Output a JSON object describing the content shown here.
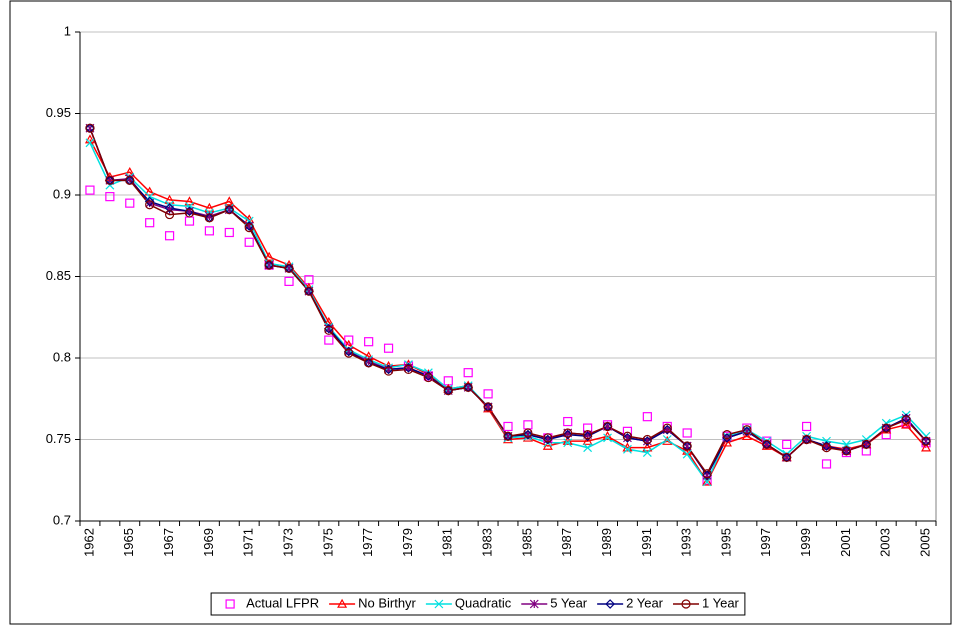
{
  "chart_data": {
    "type": "line",
    "categories": [
      "1962",
      null,
      "1965",
      null,
      "1967",
      null,
      "1969",
      null,
      "1971",
      null,
      "1973",
      null,
      "1975",
      null,
      "1977",
      null,
      "1979",
      null,
      "1981",
      null,
      "1983",
      null,
      "1985",
      null,
      "1987",
      null,
      "1989",
      null,
      "1991",
      null,
      "1993",
      null,
      "1995",
      null,
      "1997",
      null,
      "1999",
      null,
      "2001",
      null,
      "2003",
      null,
      "2005"
    ],
    "ylim": [
      0.7,
      1
    ],
    "yticks": [
      0.7,
      0.75,
      0.8,
      0.85,
      0.9,
      0.95,
      1
    ],
    "grid": true,
    "legend": "bottom",
    "series": [
      {
        "name": "Actual LFPR",
        "color": "#ff00ff",
        "marker": "square",
        "line": false,
        "values": [
          0.903,
          0.899,
          0.895,
          0.883,
          0.875,
          0.884,
          0.878,
          0.877,
          0.871,
          0.857,
          0.847,
          0.848,
          0.811,
          0.811,
          0.81,
          0.806,
          0.795,
          0.789,
          0.786,
          0.791,
          0.778,
          0.758,
          0.759,
          0.751,
          0.761,
          0.757,
          0.759,
          0.755,
          0.764,
          0.758,
          0.754,
          0.725,
          0.752,
          0.757,
          0.749,
          0.747,
          0.758,
          0.735,
          0.742,
          0.743,
          0.753,
          0.76,
          0.748
        ]
      },
      {
        "name": "No Birthyr",
        "color": "#ff0000",
        "marker": "triangle",
        "line": true,
        "values": [
          0.934,
          0.911,
          0.914,
          0.902,
          0.897,
          0.896,
          0.892,
          0.896,
          0.885,
          0.862,
          0.857,
          0.843,
          0.822,
          0.808,
          0.801,
          0.795,
          0.796,
          0.79,
          0.781,
          0.783,
          0.769,
          0.75,
          0.751,
          0.746,
          0.749,
          0.749,
          0.752,
          0.745,
          0.745,
          0.749,
          0.743,
          0.724,
          0.748,
          0.752,
          0.746,
          0.739,
          0.75,
          0.746,
          0.744,
          0.747,
          0.756,
          0.759,
          0.745
        ]
      },
      {
        "name": "Quadratic",
        "color": "#00e0e0",
        "marker": "x",
        "line": true,
        "values": [
          0.932,
          0.906,
          0.911,
          0.899,
          0.894,
          0.893,
          0.889,
          0.892,
          0.884,
          0.858,
          0.856,
          0.842,
          0.819,
          0.805,
          0.799,
          0.794,
          0.796,
          0.791,
          0.781,
          0.783,
          0.77,
          0.751,
          0.752,
          0.748,
          0.748,
          0.745,
          0.751,
          0.744,
          0.742,
          0.75,
          0.741,
          0.724,
          0.752,
          0.756,
          0.749,
          0.741,
          0.752,
          0.749,
          0.747,
          0.75,
          0.76,
          0.765,
          0.752
        ]
      },
      {
        "name": "5 Year",
        "color": "#800080",
        "marker": "star",
        "line": true,
        "values": [
          0.941,
          0.909,
          0.91,
          0.895,
          0.891,
          0.89,
          0.887,
          0.891,
          0.881,
          0.857,
          0.855,
          0.841,
          0.818,
          0.804,
          0.798,
          0.793,
          0.794,
          0.789,
          0.78,
          0.782,
          0.77,
          0.752,
          0.753,
          0.75,
          0.754,
          0.753,
          0.758,
          0.751,
          0.749,
          0.756,
          0.746,
          0.728,
          0.751,
          0.755,
          0.747,
          0.739,
          0.75,
          0.746,
          0.743,
          0.747,
          0.757,
          0.763,
          0.749
        ]
      },
      {
        "name": "2 Year",
        "color": "#000080",
        "marker": "diamond",
        "line": true,
        "values": [
          0.941,
          0.909,
          0.909,
          0.896,
          0.892,
          0.89,
          0.886,
          0.891,
          0.881,
          0.857,
          0.855,
          0.841,
          0.818,
          0.804,
          0.797,
          0.793,
          0.794,
          0.789,
          0.78,
          0.782,
          0.77,
          0.752,
          0.753,
          0.75,
          0.753,
          0.752,
          0.758,
          0.751,
          0.749,
          0.756,
          0.746,
          0.728,
          0.751,
          0.755,
          0.747,
          0.739,
          0.75,
          0.746,
          0.743,
          0.747,
          0.757,
          0.763,
          0.749
        ]
      },
      {
        "name": "1 Year",
        "color": "#800000",
        "marker": "circle",
        "line": true,
        "values": [
          0.941,
          0.909,
          0.909,
          0.894,
          0.888,
          0.889,
          0.886,
          0.891,
          0.88,
          0.857,
          0.855,
          0.841,
          0.817,
          0.803,
          0.797,
          0.792,
          0.793,
          0.788,
          0.78,
          0.782,
          0.77,
          0.752,
          0.754,
          0.751,
          0.754,
          0.753,
          0.758,
          0.752,
          0.75,
          0.757,
          0.746,
          0.729,
          0.753,
          0.756,
          0.747,
          0.739,
          0.75,
          0.745,
          0.743,
          0.747,
          0.757,
          0.762,
          0.749
        ]
      }
    ]
  }
}
